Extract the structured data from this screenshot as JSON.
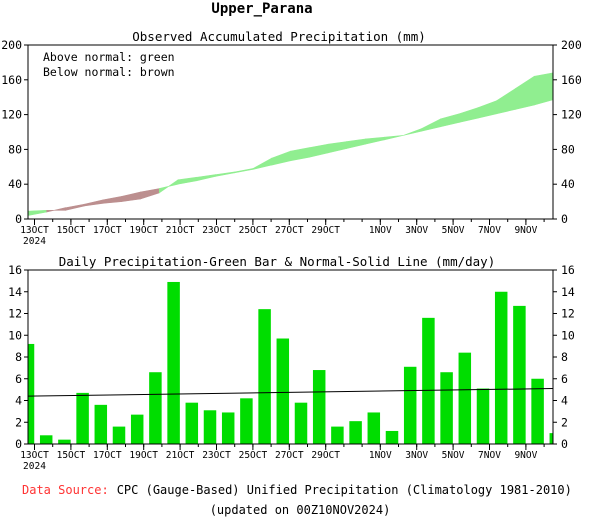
{
  "page_title": "Upper_Parana",
  "footer": {
    "source_label": "Data Source:",
    "source_text": "CPC (Gauge-Based) Unified Precipitation (Climatology 1981-2010)",
    "updated": "(updated on 00Z10NOV2024)"
  },
  "colors": {
    "above_normal": "#90ee90",
    "below_normal": "#bc8f8f",
    "bar": "#00dd00",
    "normal_line": "#000000",
    "source_label": "#ff3333"
  },
  "chart_data": [
    {
      "type": "area",
      "title": "Observed Accumulated Precipitation (mm)",
      "annotations": [
        "Above normal: green",
        "Below normal: brown"
      ],
      "ylim": [
        0,
        200
      ],
      "yticks": [
        0,
        40,
        80,
        120,
        160,
        200
      ],
      "xtick_labels": [
        "13OCT",
        "15OCT",
        "17OCT",
        "19OCT",
        "21OCT",
        "23OCT",
        "25OCT",
        "27OCT",
        "29OCT",
        "1NOV",
        "3NOV",
        "5NOV",
        "7NOV",
        "9NOV"
      ],
      "xtick_days": [
        0,
        2,
        4,
        6,
        8,
        10,
        12,
        14,
        16,
        19,
        21,
        23,
        25,
        27
      ],
      "year_label": "2024",
      "days": [
        "12OCT",
        "13OCT",
        "14OCT",
        "15OCT",
        "16OCT",
        "17OCT",
        "18OCT",
        "19OCT",
        "20OCT",
        "21OCT",
        "22OCT",
        "23OCT",
        "24OCT",
        "25OCT",
        "26OCT",
        "27OCT",
        "28OCT",
        "29OCT",
        "30OCT",
        "31OCT",
        "1NOV",
        "2NOV",
        "3NOV",
        "4NOV",
        "5NOV",
        "6NOV",
        "7NOV",
        "8NOV",
        "9NOV"
      ],
      "series": [
        {
          "name": "Observed",
          "values": [
            9,
            10,
            10,
            15,
            18,
            20,
            23,
            30,
            45,
            48,
            51,
            54,
            58,
            70,
            78,
            82,
            86,
            89,
            92,
            94,
            96,
            104,
            115,
            121,
            128,
            136,
            150,
            164,
            168
          ]
        },
        {
          "name": "Normal",
          "values": [
            4,
            8,
            13,
            17,
            22,
            26,
            31,
            35,
            40,
            44,
            49,
            53,
            57,
            62,
            67,
            71,
            76,
            81,
            86,
            91,
            96,
            101,
            106,
            111,
            116,
            121,
            126,
            131,
            137
          ]
        }
      ]
    },
    {
      "type": "bar",
      "title": "Daily Precipitation-Green Bar & Normal-Solid Line (mm/day)",
      "ylim": [
        0,
        16
      ],
      "yticks": [
        0,
        2,
        4,
        6,
        8,
        10,
        12,
        14,
        16
      ],
      "xtick_labels": [
        "13OCT",
        "15OCT",
        "17OCT",
        "19OCT",
        "21OCT",
        "23OCT",
        "25OCT",
        "27OCT",
        "29OCT",
        "1NOV",
        "3NOV",
        "5NOV",
        "7NOV",
        "9NOV"
      ],
      "xtick_days": [
        0,
        2,
        4,
        6,
        8,
        10,
        12,
        14,
        16,
        19,
        21,
        23,
        25,
        27
      ],
      "year_label": "2024",
      "days": [
        "12OCT",
        "13OCT",
        "14OCT",
        "15OCT",
        "16OCT",
        "17OCT",
        "18OCT",
        "19OCT",
        "20OCT",
        "21OCT",
        "22OCT",
        "23OCT",
        "24OCT",
        "25OCT",
        "26OCT",
        "27OCT",
        "28OCT",
        "29OCT",
        "30OCT",
        "31OCT",
        "1NOV",
        "2NOV",
        "3NOV",
        "4NOV",
        "5NOV",
        "6NOV",
        "7NOV",
        "8NOV",
        "9NOV",
        "10NOV"
      ],
      "values": [
        9.2,
        0.8,
        0.4,
        4.7,
        3.6,
        1.6,
        2.7,
        6.6,
        14.9,
        3.8,
        3.1,
        2.9,
        4.2,
        12.4,
        9.7,
        3.8,
        6.8,
        1.6,
        2.1,
        2.9,
        1.2,
        7.1,
        11.6,
        6.6,
        8.4,
        5.1,
        14.0,
        12.7,
        6.0,
        1.0
      ],
      "normal_line": {
        "from": 4.4,
        "to": 5.1
      }
    }
  ]
}
